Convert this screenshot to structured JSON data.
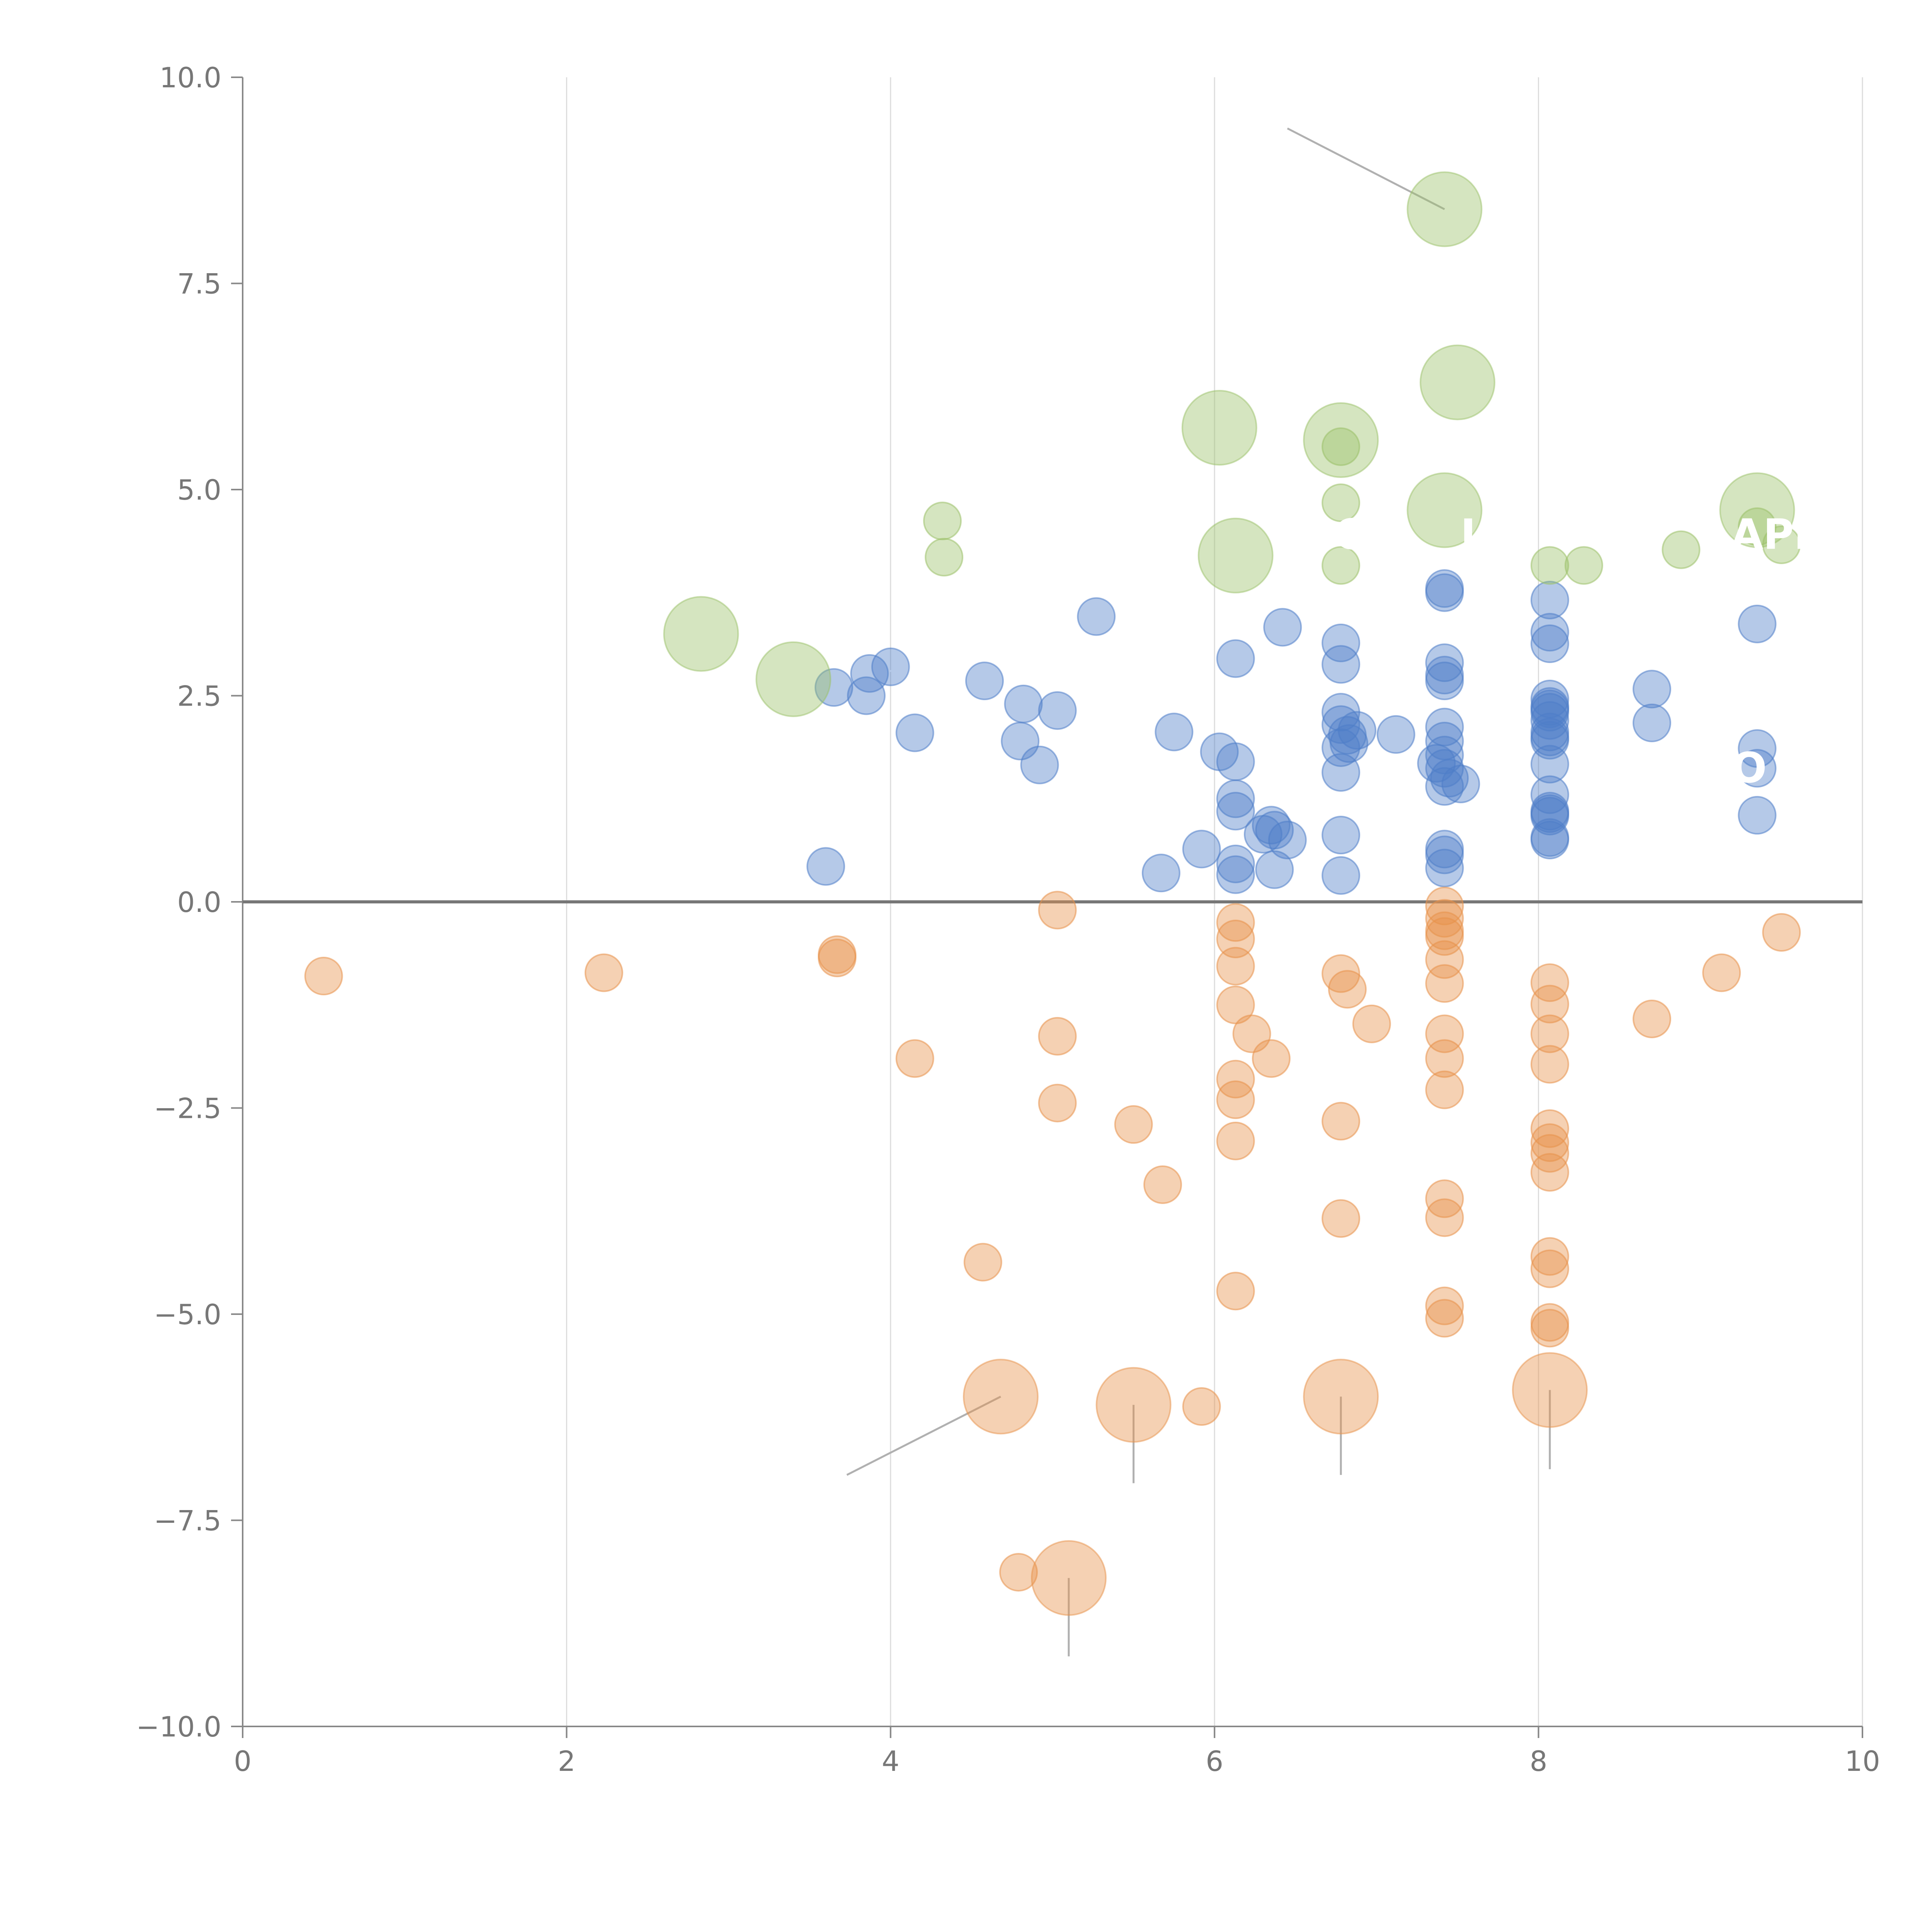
{
  "chart_data": {
    "type": "scatter",
    "title": "",
    "xlabel": "",
    "ylabel": "",
    "xlim": [
      0,
      10
    ],
    "ylim": [
      -10,
      10
    ],
    "x_ticks": [
      {
        "value": 0,
        "label": "0"
      },
      {
        "value": 2,
        "label": "2"
      },
      {
        "value": 4,
        "label": "4"
      },
      {
        "value": 6,
        "label": "6"
      },
      {
        "value": 8,
        "label": "8"
      },
      {
        "value": 10,
        "label": "10"
      }
    ],
    "y_ticks": [
      {
        "value": 10,
        "label": "10.0"
      },
      {
        "value": 7.5,
        "label": "7.5"
      },
      {
        "value": 5,
        "label": "5.0"
      },
      {
        "value": 2.5,
        "label": "2.5"
      },
      {
        "value": 0,
        "label": "0.0"
      },
      {
        "value": -2.5,
        "label": "−2.5"
      },
      {
        "value": -5,
        "label": "−5.0"
      },
      {
        "value": -7.5,
        "label": "−7.5"
      },
      {
        "value": -10,
        "label": "−10.0"
      }
    ],
    "grid": "vertical",
    "zero_line": true,
    "colors": {
      "blue": "#4f7ec9",
      "orange": "#e8924a",
      "green": "#9cc16a",
      "axis": "#888888",
      "grid": "#dcdcdc",
      "zero": "#777777",
      "leader": "#b0b0b0"
    },
    "series": [
      {
        "name": "blue",
        "color": "#4f7ec9",
        "points": [
          [
            3.6,
            0.43
          ],
          [
            3.65,
            2.6
          ],
          [
            3.85,
            2.5
          ],
          [
            3.87,
            2.77
          ],
          [
            4.0,
            2.85
          ],
          [
            4.15,
            2.05
          ],
          [
            4.58,
            2.68
          ],
          [
            4.8,
            1.95
          ],
          [
            4.82,
            2.4
          ],
          [
            4.92,
            1.66
          ],
          [
            5.03,
            2.32
          ],
          [
            5.27,
            3.46
          ],
          [
            5.67,
            0.35
          ],
          [
            5.75,
            2.06
          ],
          [
            5.92,
            0.64
          ],
          [
            6.03,
            1.82
          ],
          [
            6.13,
            2.95
          ],
          [
            6.13,
            1.7
          ],
          [
            6.13,
            1.25
          ],
          [
            6.13,
            1.1
          ],
          [
            6.13,
            0.46
          ],
          [
            6.13,
            0.33
          ],
          [
            6.3,
            0.82
          ],
          [
            6.35,
            0.93
          ],
          [
            6.37,
            0.87
          ],
          [
            6.37,
            0.39
          ],
          [
            6.42,
            3.33
          ],
          [
            6.45,
            0.75
          ],
          [
            6.78,
            3.14
          ],
          [
            6.78,
            2.88
          ],
          [
            6.78,
            2.3
          ],
          [
            6.78,
            2.15
          ],
          [
            6.78,
            1.87
          ],
          [
            6.78,
            1.57
          ],
          [
            6.78,
            0.81
          ],
          [
            6.78,
            0.32
          ],
          [
            6.82,
            2.02
          ],
          [
            6.83,
            1.92
          ],
          [
            6.88,
            2.08
          ],
          [
            7.12,
            2.03
          ],
          [
            7.42,
            3.8
          ],
          [
            7.42,
            3.75
          ],
          [
            7.42,
            2.9
          ],
          [
            7.42,
            2.75
          ],
          [
            7.42,
            2.68
          ],
          [
            7.42,
            2.12
          ],
          [
            7.42,
            1.95
          ],
          [
            7.42,
            1.78
          ],
          [
            7.37,
            1.68
          ],
          [
            7.42,
            1.62
          ],
          [
            7.45,
            1.5
          ],
          [
            7.42,
            1.4
          ],
          [
            7.52,
            1.43
          ],
          [
            7.42,
            0.64
          ],
          [
            7.42,
            0.57
          ],
          [
            7.42,
            0.41
          ],
          [
            8.07,
            3.66
          ],
          [
            8.07,
            3.27
          ],
          [
            8.07,
            3.13
          ],
          [
            8.07,
            2.46
          ],
          [
            8.07,
            2.37
          ],
          [
            8.07,
            2.34
          ],
          [
            8.07,
            2.3
          ],
          [
            8.07,
            2.2
          ],
          [
            8.07,
            2.06
          ],
          [
            8.07,
            2.0
          ],
          [
            8.07,
            1.96
          ],
          [
            8.07,
            1.67
          ],
          [
            8.07,
            1.3
          ],
          [
            8.07,
            1.1
          ],
          [
            8.07,
            1.07
          ],
          [
            8.07,
            1.04
          ],
          [
            8.07,
            0.78
          ],
          [
            8.07,
            0.75
          ],
          [
            8.7,
            2.58
          ],
          [
            8.7,
            2.17
          ],
          [
            9.35,
            3.37
          ],
          [
            9.35,
            1.86
          ],
          [
            9.35,
            1.62
          ],
          [
            9.35,
            1.05
          ]
        ]
      },
      {
        "name": "orange",
        "color": "#e8924a",
        "points": [
          [
            0.5,
            -0.9
          ],
          [
            2.23,
            -0.86
          ],
          [
            3.67,
            -0.64
          ],
          [
            3.67,
            -0.68
          ],
          [
            4.15,
            -1.9
          ],
          [
            4.57,
            -4.37
          ],
          [
            4.79,
            -8.13
          ],
          [
            5.03,
            -0.1
          ],
          [
            5.03,
            -1.63
          ],
          [
            5.03,
            -2.44
          ],
          [
            5.5,
            -2.7
          ],
          [
            5.68,
            -3.43
          ],
          [
            5.92,
            -6.12
          ],
          [
            6.13,
            -0.25
          ],
          [
            6.13,
            -0.45
          ],
          [
            6.13,
            -0.78
          ],
          [
            6.13,
            -1.25
          ],
          [
            6.23,
            -1.6
          ],
          [
            6.13,
            -2.15
          ],
          [
            6.13,
            -2.4
          ],
          [
            6.13,
            -2.9
          ],
          [
            6.13,
            -4.72
          ],
          [
            6.35,
            -1.9
          ],
          [
            6.78,
            -0.87
          ],
          [
            6.82,
            -1.06
          ],
          [
            6.97,
            -1.48
          ],
          [
            6.78,
            -2.66
          ],
          [
            6.78,
            -3.84
          ],
          [
            7.42,
            -0.05
          ],
          [
            7.42,
            -0.2
          ],
          [
            7.42,
            -0.35
          ],
          [
            7.42,
            -0.42
          ],
          [
            7.42,
            -0.7
          ],
          [
            7.42,
            -0.99
          ],
          [
            7.42,
            -1.6
          ],
          [
            7.42,
            -1.9
          ],
          [
            7.42,
            -2.28
          ],
          [
            7.42,
            -3.6
          ],
          [
            7.42,
            -3.83
          ],
          [
            7.42,
            -4.9
          ],
          [
            7.42,
            -5.05
          ],
          [
            8.07,
            -0.98
          ],
          [
            8.07,
            -1.24
          ],
          [
            8.07,
            -1.6
          ],
          [
            8.07,
            -1.97
          ],
          [
            8.07,
            -2.75
          ],
          [
            8.07,
            -2.92
          ],
          [
            8.07,
            -3.05
          ],
          [
            8.07,
            -3.28
          ],
          [
            8.07,
            -4.3
          ],
          [
            8.07,
            -4.45
          ],
          [
            8.07,
            -5.1
          ],
          [
            8.07,
            -5.17
          ],
          [
            8.7,
            -1.42
          ],
          [
            9.13,
            -0.86
          ],
          [
            9.5,
            -0.37
          ]
        ]
      },
      {
        "name": "green",
        "color": "#9cc16a",
        "points": [
          [
            4.32,
            4.62
          ],
          [
            4.33,
            4.18
          ],
          [
            6.78,
            5.52
          ],
          [
            6.78,
            4.84
          ],
          [
            6.78,
            4.08
          ],
          [
            8.07,
            4.08
          ],
          [
            8.28,
            4.08
          ],
          [
            8.88,
            4.27
          ],
          [
            9.35,
            4.55
          ],
          [
            9.5,
            4.33
          ]
        ]
      }
    ],
    "highlighted": [
      {
        "series": "green",
        "x": 7.42,
        "y": 8.4,
        "size": "large",
        "leader_color": "gray",
        "leader_to": [
          6.45,
          9.38
        ]
      },
      {
        "series": "green",
        "x": 7.5,
        "y": 6.3,
        "size": "large",
        "leader_color": "white",
        "leader_to": [
          7.7,
          6.33
        ]
      },
      {
        "series": "green",
        "x": 6.03,
        "y": 5.75,
        "size": "large"
      },
      {
        "series": "green",
        "x": 6.78,
        "y": 5.6,
        "size": "large",
        "leader_color": "white",
        "leader_to": [
          6.84,
          6.0
        ]
      },
      {
        "series": "green",
        "x": 7.42,
        "y": 4.75,
        "size": "large",
        "leader_color": "white",
        "leader_to": [
          7.58,
          4.45
        ]
      },
      {
        "series": "green",
        "x": 9.35,
        "y": 4.75,
        "size": "large"
      },
      {
        "series": "green",
        "x": 6.13,
        "y": 4.2,
        "size": "large",
        "leader_color": "white",
        "leader_to": [
          6.42,
          4.22
        ]
      },
      {
        "series": "green",
        "x": 2.83,
        "y": 3.25,
        "size": "large",
        "leader_color": "white",
        "leader_to": [
          2.98,
          3.45
        ]
      },
      {
        "series": "green",
        "x": 3.4,
        "y": 2.7,
        "size": "large",
        "leader_color": "white",
        "leader_to": [
          4.6,
          2.9
        ]
      },
      {
        "series": "orange",
        "x": 4.68,
        "y": -6.0,
        "size": "large",
        "leader_color": "gray",
        "leader_to": [
          3.73,
          -6.95
        ]
      },
      {
        "series": "orange",
        "x": 5.5,
        "y": -6.1,
        "size": "large",
        "leader_color": "gray",
        "leader_to": [
          5.5,
          -7.05
        ]
      },
      {
        "series": "orange",
        "x": 6.78,
        "y": -6.0,
        "size": "large",
        "leader_color": "gray",
        "leader_to": [
          6.78,
          -6.95
        ]
      },
      {
        "series": "orange",
        "x": 8.07,
        "y": -5.92,
        "size": "large",
        "leader_color": "gray",
        "leader_to": [
          8.07,
          -6.88
        ]
      },
      {
        "series": "orange",
        "x": 5.1,
        "y": -8.2,
        "size": "large",
        "leader_color": "gray",
        "leader_to": [
          5.1,
          -9.15
        ]
      }
    ],
    "annotations": [
      {
        "text": "APE",
        "x": 9.47,
        "y": 4.45
      },
      {
        "text": "C",
        "x": 6.83,
        "y": 4.45
      },
      {
        "text": "L",
        "x": 7.6,
        "y": 4.45
      },
      {
        "text": "O",
        "x": 9.3,
        "y": 1.62
      }
    ]
  }
}
